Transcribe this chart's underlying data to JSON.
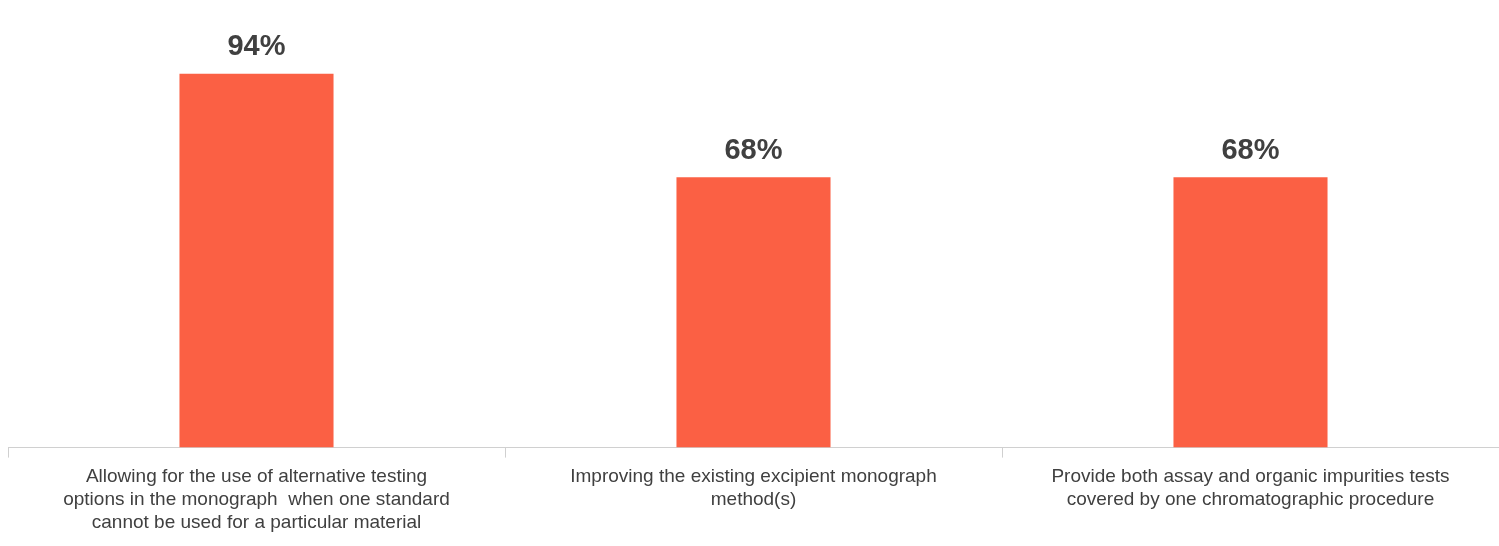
{
  "chart_data": {
    "type": "bar",
    "categories": [
      "Allowing for the use of alternative testing options in the monograph  when one standard cannot be used for a particular material",
      "Improving the existing excipient monograph method(s)",
      "Provide both assay and organic impurities tests covered by one chromatographic procedure"
    ],
    "values": [
      94,
      68,
      68
    ],
    "value_labels": [
      "94%",
      "68%",
      "68%"
    ],
    "color": "#fb6044",
    "grid": false,
    "legend": false
  }
}
